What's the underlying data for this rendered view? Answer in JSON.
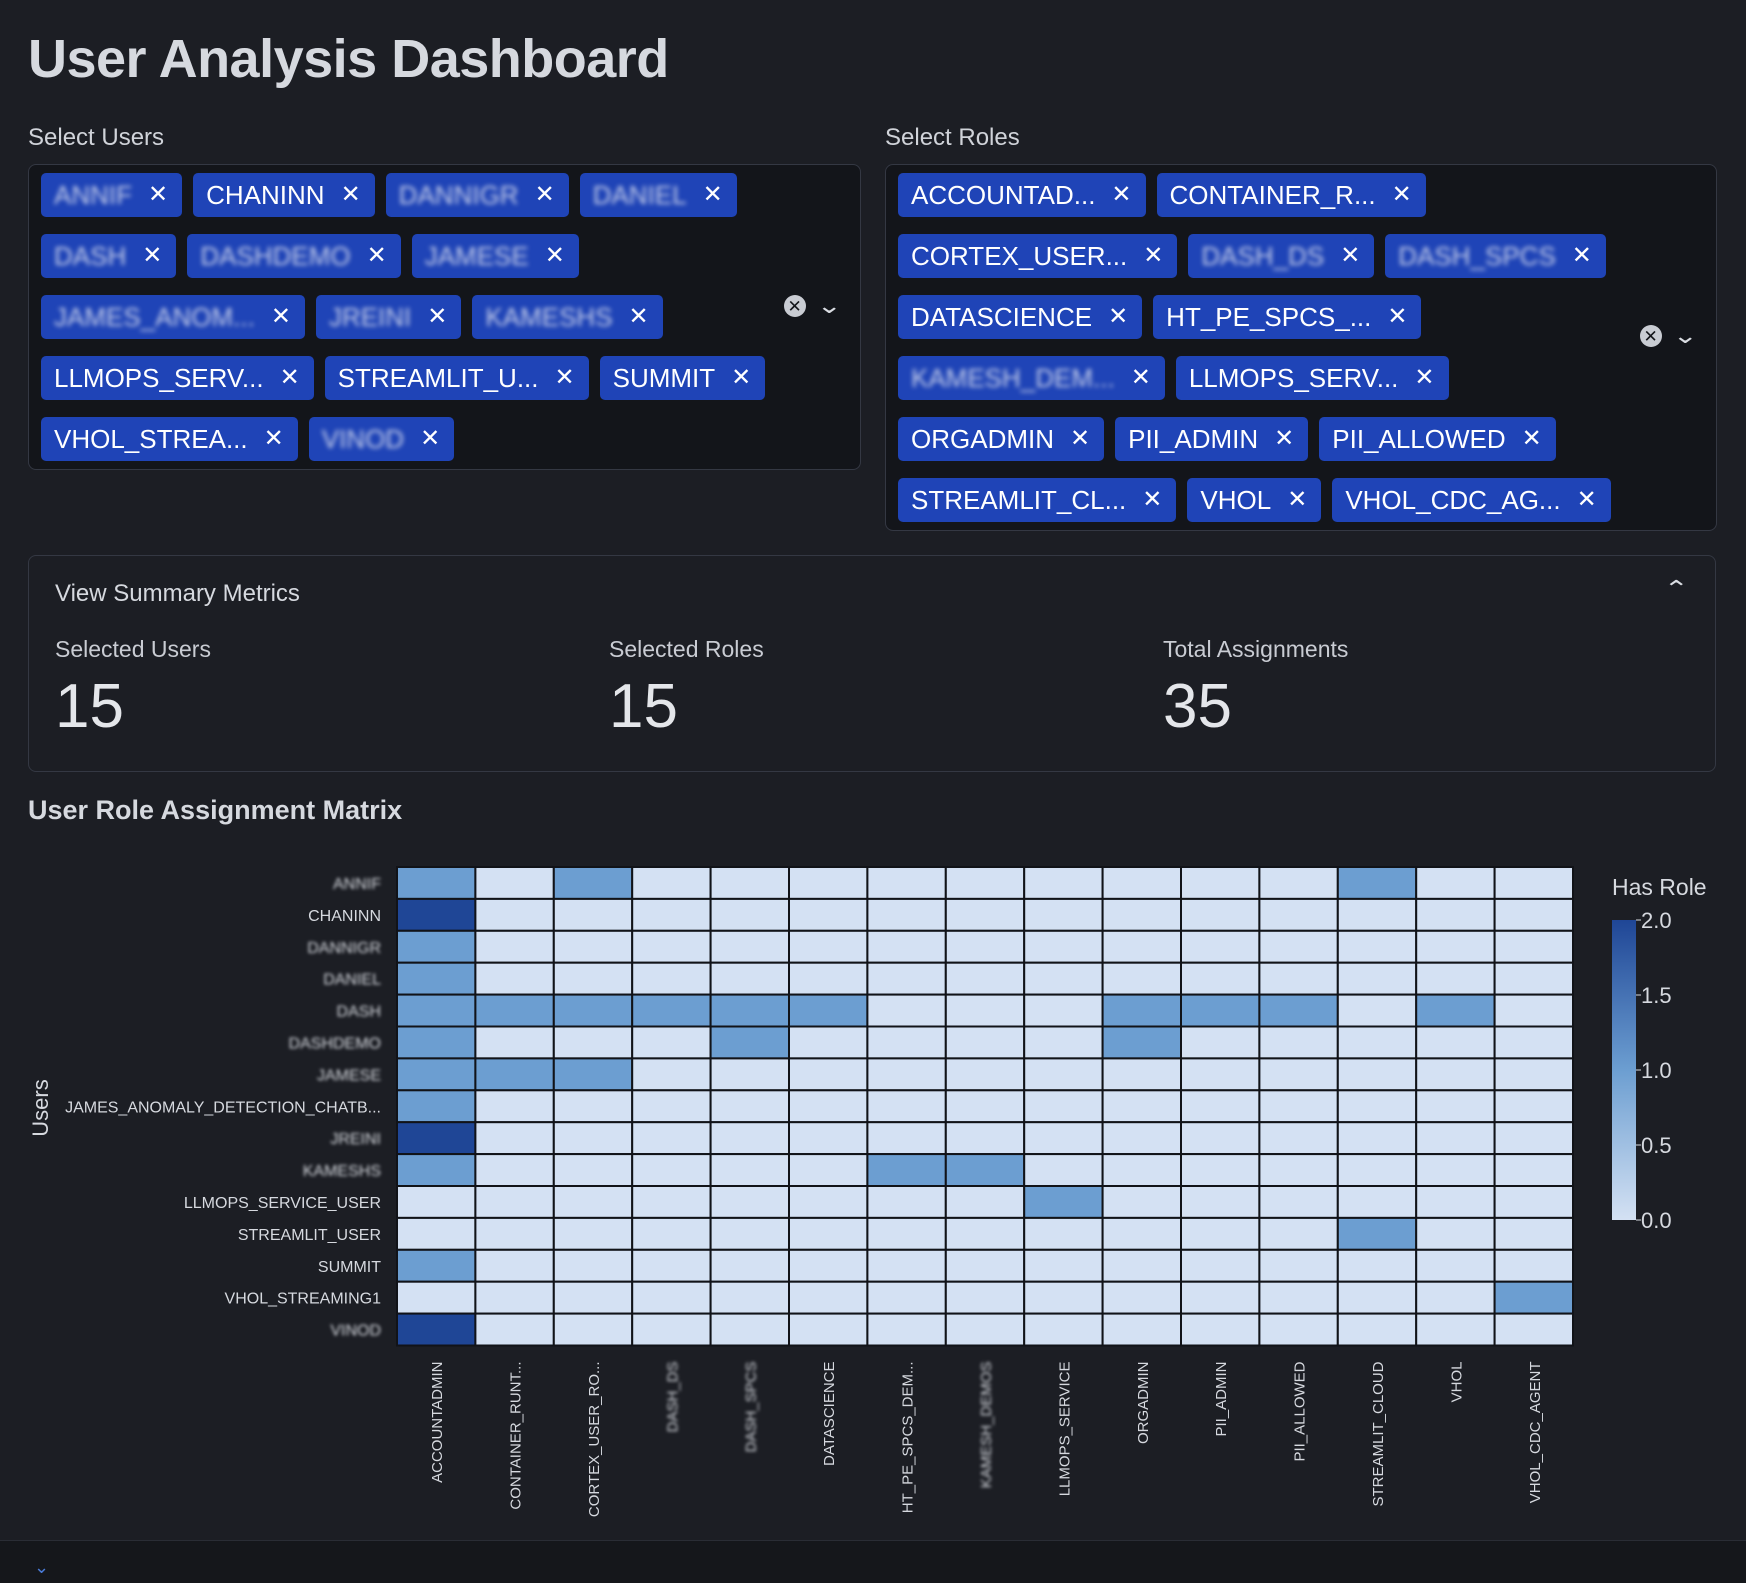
{
  "page": {
    "title": "User Analysis Dashboard"
  },
  "users_select": {
    "label": "Select Users",
    "chips": [
      {
        "label": "ANNIF",
        "blur": true
      },
      {
        "label": "CHANINN",
        "blur": false
      },
      {
        "label": "DANNIGR",
        "blur": true
      },
      {
        "label": "DANIEL",
        "blur": true
      },
      {
        "label": "DASH",
        "blur": true
      },
      {
        "label": "DASHDEMO",
        "blur": true
      },
      {
        "label": "JAMESE",
        "blur": true
      },
      {
        "label": "JAMES_ANOM...",
        "blur": true
      },
      {
        "label": "JREINI",
        "blur": true
      },
      {
        "label": "KAMESHS",
        "blur": true
      },
      {
        "label": "LLMOPS_SERV...",
        "blur": false
      },
      {
        "label": "STREAMLIT_U...",
        "blur": false
      },
      {
        "label": "SUMMIT",
        "blur": false
      },
      {
        "label": "VHOL_STREA...",
        "blur": false
      },
      {
        "label": "VINOD",
        "blur": true
      }
    ]
  },
  "roles_select": {
    "label": "Select Roles",
    "chips": [
      {
        "label": "ACCOUNTAD...",
        "blur": false
      },
      {
        "label": "CONTAINER_R...",
        "blur": false
      },
      {
        "label": "CORTEX_USER...",
        "blur": false
      },
      {
        "label": "DASH_DS",
        "blur": true
      },
      {
        "label": "DASH_SPCS",
        "blur": true
      },
      {
        "label": "DATASCIENCE",
        "blur": false
      },
      {
        "label": "HT_PE_SPCS_...",
        "blur": false
      },
      {
        "label": "KAMESH_DEM...",
        "blur": true
      },
      {
        "label": "LLMOPS_SERV...",
        "blur": false
      },
      {
        "label": "ORGADMIN",
        "blur": false
      },
      {
        "label": "PII_ADMIN",
        "blur": false
      },
      {
        "label": "PII_ALLOWED",
        "blur": false
      },
      {
        "label": "STREAMLIT_CL...",
        "blur": false
      },
      {
        "label": "VHOL",
        "blur": false
      },
      {
        "label": "VHOL_CDC_AG...",
        "blur": false
      }
    ]
  },
  "summary": {
    "title": "View Summary Metrics",
    "metrics": [
      {
        "label": "Selected Users",
        "value": "15"
      },
      {
        "label": "Selected Roles",
        "value": "15"
      },
      {
        "label": "Total Assignments",
        "value": "35"
      }
    ]
  },
  "matrix": {
    "title": "User Role Assignment Matrix"
  },
  "chart_data": {
    "type": "heatmap",
    "title": "User Role Assignment Matrix",
    "ylabel": "Users",
    "xlabel": "",
    "rows": [
      "ANNIF",
      "CHANINN",
      "DANNIGR",
      "DANIEL",
      "DASH",
      "DASHDEMO",
      "JAMESE",
      "JAMES_ANOMALY_DETECTION_CHATB...",
      "JREINI",
      "KAMESHS",
      "LLMOPS_SERVICE_USER",
      "STREAMLIT_USER",
      "SUMMIT",
      "VHOL_STREAMING1",
      "VINOD"
    ],
    "columns": [
      "ACCOUNTADMIN",
      "CONTAINER_RUNT...",
      "CORTEX_USER_RO...",
      "DASH_DS",
      "DASH_SPCS",
      "DATASCIENCE",
      "HT_PE_SPCS_DEM...",
      "KAMESH_DEMOS",
      "LLMOPS_SERVICE",
      "ORGADMIN",
      "PII_ADMIN",
      "PII_ALLOWED",
      "STREAMLIT_CLOUD",
      "VHOL",
      "VHOL_CDC_AGENT"
    ],
    "values": [
      [
        1,
        0,
        1,
        0,
        0,
        0,
        0,
        0,
        0,
        0,
        0,
        0,
        1,
        0,
        0
      ],
      [
        2,
        0,
        0,
        0,
        0,
        0,
        0,
        0,
        0,
        0,
        0,
        0,
        0,
        0,
        0
      ],
      [
        1,
        0,
        0,
        0,
        0,
        0,
        0,
        0,
        0,
        0,
        0,
        0,
        0,
        0,
        0
      ],
      [
        1,
        0,
        0,
        0,
        0,
        0,
        0,
        0,
        0,
        0,
        0,
        0,
        0,
        0,
        0
      ],
      [
        1,
        1,
        1,
        1,
        1,
        1,
        0,
        0,
        0,
        1,
        1,
        1,
        0,
        1,
        0
      ],
      [
        1,
        0,
        0,
        0,
        1,
        0,
        0,
        0,
        0,
        1,
        0,
        0,
        0,
        0,
        0
      ],
      [
        1,
        1,
        1,
        0,
        0,
        0,
        0,
        0,
        0,
        0,
        0,
        0,
        0,
        0,
        0
      ],
      [
        1,
        0,
        0,
        0,
        0,
        0,
        0,
        0,
        0,
        0,
        0,
        0,
        0,
        0,
        0
      ],
      [
        2,
        0,
        0,
        0,
        0,
        0,
        0,
        0,
        0,
        0,
        0,
        0,
        0,
        0,
        0
      ],
      [
        1,
        0,
        0,
        0,
        0,
        0,
        1,
        1,
        0,
        0,
        0,
        0,
        0,
        0,
        0
      ],
      [
        0,
        0,
        0,
        0,
        0,
        0,
        0,
        0,
        1,
        0,
        0,
        0,
        0,
        0,
        0
      ],
      [
        0,
        0,
        0,
        0,
        0,
        0,
        0,
        0,
        0,
        0,
        0,
        0,
        1,
        0,
        0
      ],
      [
        1,
        0,
        0,
        0,
        0,
        0,
        0,
        0,
        0,
        0,
        0,
        0,
        0,
        0,
        0
      ],
      [
        0,
        0,
        0,
        0,
        0,
        0,
        0,
        0,
        0,
        0,
        0,
        0,
        0,
        0,
        1
      ],
      [
        2,
        0,
        0,
        0,
        0,
        0,
        0,
        0,
        0,
        0,
        0,
        0,
        0,
        0,
        0
      ]
    ],
    "blurred_rows": [
      0,
      2,
      3,
      4,
      5,
      6,
      8,
      9,
      14
    ],
    "blurred_columns": [
      3,
      4,
      7
    ],
    "colorbar": {
      "title": "Has Role",
      "min": 0.0,
      "max": 2.0,
      "ticks": [
        "2.0",
        "1.5",
        "1.0",
        "0.5",
        "0.0"
      ]
    },
    "colors": {
      "0": "#d4e1f3",
      "1": "#6c9ed1",
      "2": "#1f4696"
    }
  }
}
